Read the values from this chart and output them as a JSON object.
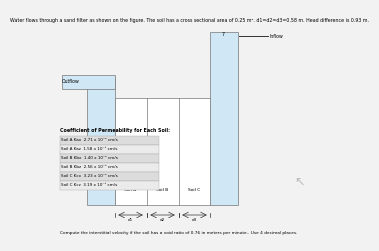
{
  "title": "Water flows through a sand filter as shown on the figure. The soil has a cross sectional area of 0.25 m². d1=d2=d3=0.58 m. Head difference is 0.93 m.",
  "bg_color": "#d0e8f5",
  "white_color": "#ffffff",
  "outflow_label": "Outflow",
  "inflow_label": "Inflow",
  "soil_labels": [
    "Soil A",
    "Soil B",
    "Soil C"
  ],
  "coeff_title": "Coefficient of Permeability for Each Soil:",
  "coeff_rows": [
    "Soil A Kax  2.71 x 10⁻² cm/s",
    "Soil A Kaz  1.58 x 10⁻³ cm/s",
    "Soil B Kbx  1.40 x 10⁻² cm/s",
    "Soil B Kbz  2.56 x 10⁻³ cm/s",
    "Soil C Kcx  3.23 x 10⁻² cm/s",
    "Soil C Kcz  3.19 x 10⁻³ cm/s"
  ],
  "question": "Compute the interstitial velocity if the soil has a void ratio of 0.76 in meters per minute.. Use 4 decimal places.",
  "text_color": "#000000",
  "border_color": "#777777",
  "facecolor": "#f2f2f2"
}
